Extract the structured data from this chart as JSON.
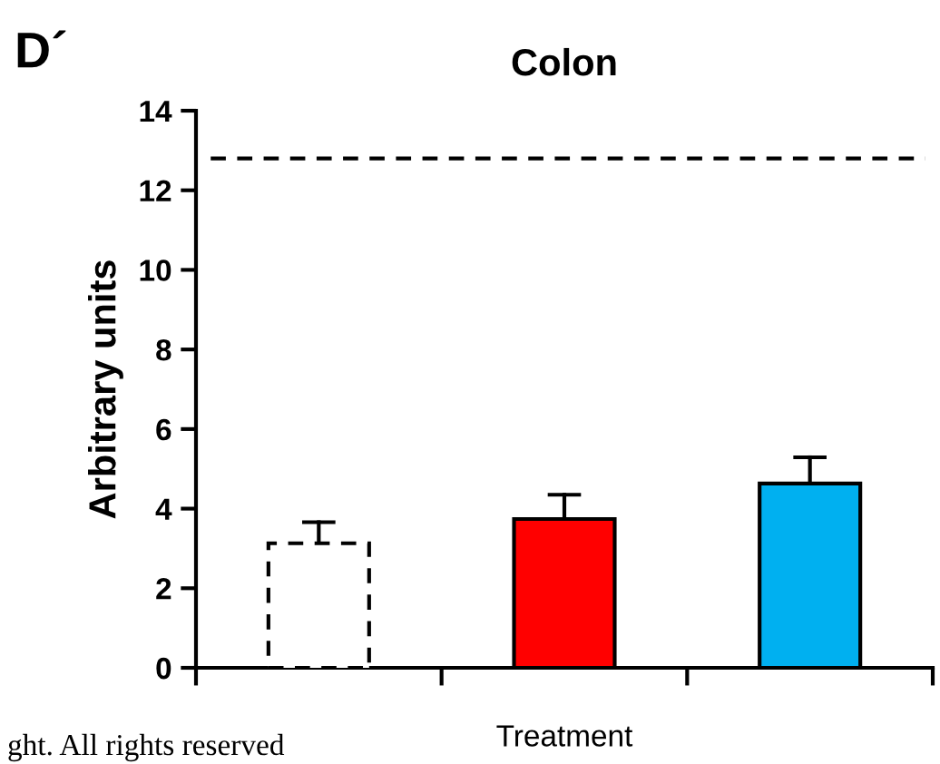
{
  "chart_data": {
    "type": "bar",
    "title": "Colon",
    "ylabel": "Arbitrary units",
    "xlabel": "Treatment",
    "categories": [
      null,
      null,
      null
    ],
    "values": [
      3.13,
      3.74,
      4.63
    ],
    "colors": [
      "#ffffff",
      "#ff0000",
      "#00b0f0"
    ],
    "line_style": [
      "dashed",
      "solid",
      "solid"
    ],
    "errors": [
      [
        3.13,
        3.66
      ],
      [
        3.74,
        4.35
      ],
      [
        4.63,
        5.29
      ]
    ],
    "ylim": [
      0,
      14
    ],
    "yticks": [
      0,
      2,
      4,
      6,
      8,
      10,
      12,
      14
    ],
    "ref_lines": [
      {
        "axis": "y",
        "value": 12.8,
        "line_style": "dashed",
        "color": "#000000"
      }
    ],
    "grid": false,
    "legend": false,
    "annotations": [
      "D´",
      "ght. All rights reserved"
    ]
  }
}
